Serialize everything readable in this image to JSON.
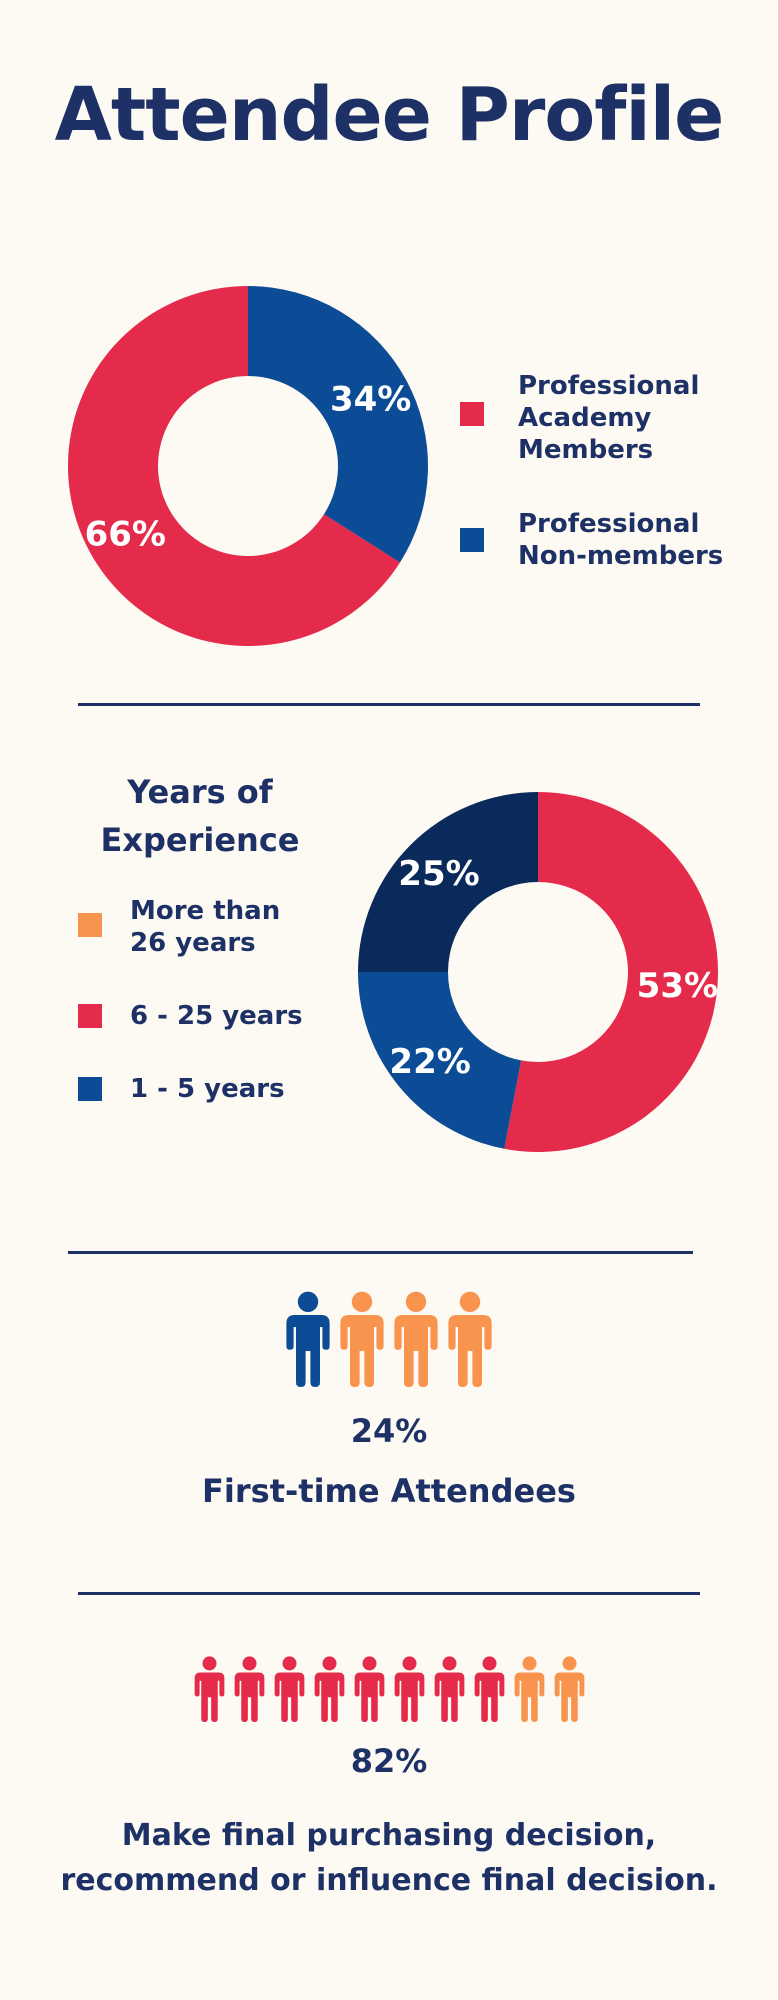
{
  "title": "Attendee Profile",
  "colors": {
    "navy": "#1d3166",
    "blue": "#0c4b96",
    "dark_navy": "#0b2a5c",
    "red": "#e42b4b",
    "orange": "#f8944e",
    "background": "#fdf9f3"
  },
  "chart_data": [
    {
      "type": "pie",
      "title": "",
      "categories": [
        "Professional Academy Members",
        "Professional Non-members"
      ],
      "values": [
        66,
        34
      ],
      "labels": [
        "66%",
        "34%"
      ],
      "colors": [
        "#e42b4b",
        "#0c4b96"
      ],
      "legend": [
        {
          "label": "Professional Academy Members",
          "color": "#e42b4b"
        },
        {
          "label": "Professional Non-members",
          "color": "#0c4b96"
        }
      ],
      "legend_placement": "right"
    },
    {
      "type": "pie",
      "title": "Years of Experience",
      "categories": [
        "More than 26 years",
        "6 - 25 years",
        "1 - 5 years"
      ],
      "values": [
        25,
        53,
        22
      ],
      "labels": [
        "25%",
        "53%",
        "22%"
      ],
      "colors": [
        "#0b2a5c",
        "#e42b4b",
        "#0c4b96"
      ],
      "legend": [
        {
          "label": "More than 26 years",
          "color": "#f8944e"
        },
        {
          "label": "6 - 25 years",
          "color": "#e42b4b"
        },
        {
          "label": "1 - 5 years",
          "color": "#0c4b96"
        }
      ],
      "legend_placement": "left"
    }
  ],
  "first_time": {
    "value": "24%",
    "label": "First-time Attendees",
    "icons": [
      "#0c4b96",
      "#f8944e",
      "#f8944e",
      "#f8944e"
    ]
  },
  "decision": {
    "value": "82%",
    "line1": "Make final purchasing decision,",
    "line2": "recommend or influence final decision.",
    "icons": [
      "#e42b4b",
      "#e42b4b",
      "#e42b4b",
      "#e42b4b",
      "#e42b4b",
      "#e42b4b",
      "#e42b4b",
      "#e42b4b",
      "#f8944e",
      "#f8944e"
    ]
  }
}
